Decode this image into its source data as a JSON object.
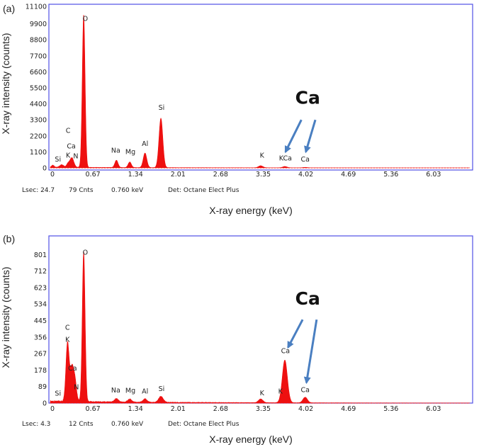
{
  "chart_data": [
    {
      "type": "area",
      "panel_label": "(a)",
      "ylabel": "X-ray intensity (counts)",
      "xlabel": "X-ray energy (keV)",
      "xlim": [
        0,
        6.6
      ],
      "ylim": [
        0,
        11100
      ],
      "x_ticks": [
        "0",
        "0.67",
        "1.34",
        "2.01",
        "2.68",
        "3.35",
        "4.02",
        "4.69",
        "5.36",
        "6.03"
      ],
      "y_ticks": [
        "0",
        "1100",
        "2200",
        "3300",
        "4400",
        "5500",
        "6600",
        "7700",
        "8800",
        "9900",
        "11100"
      ],
      "peaks": [
        {
          "x": 0.04,
          "y": 150,
          "w": 0.02
        },
        {
          "x": 0.18,
          "y": 180,
          "w": 0.03
        },
        {
          "x": 0.28,
          "y": 250,
          "w": 0.025
        },
        {
          "x": 0.34,
          "y": 650,
          "w": 0.03
        },
        {
          "x": 0.525,
          "y": 10500,
          "w": 0.022
        },
        {
          "x": 1.04,
          "y": 500,
          "w": 0.025
        },
        {
          "x": 1.25,
          "y": 380,
          "w": 0.025
        },
        {
          "x": 1.49,
          "y": 1000,
          "w": 0.028
        },
        {
          "x": 1.74,
          "y": 3400,
          "w": 0.03
        },
        {
          "x": 3.31,
          "y": 140,
          "w": 0.035
        },
        {
          "x": 3.69,
          "y": 90,
          "w": 0.035
        },
        {
          "x": 4.01,
          "y": 30,
          "w": 0.035
        }
      ],
      "background": 60,
      "element_labels": [
        {
          "text": "Si",
          "x": 0.12,
          "y": 450
        },
        {
          "text": "K",
          "x": 0.28,
          "y": 700
        },
        {
          "text": "N",
          "x": 0.4,
          "y": 650
        },
        {
          "text": "Ca",
          "x": 0.33,
          "y": 1350
        },
        {
          "text": "C",
          "x": 0.28,
          "y": 2400
        },
        {
          "text": "O",
          "x": 0.55,
          "y": 10100
        },
        {
          "text": "Na",
          "x": 1.03,
          "y": 1050
        },
        {
          "text": "Mg",
          "x": 1.26,
          "y": 950
        },
        {
          "text": "Al",
          "x": 1.49,
          "y": 1500
        },
        {
          "text": "Si",
          "x": 1.75,
          "y": 4000
        },
        {
          "text": "K",
          "x": 3.33,
          "y": 700
        },
        {
          "text": "KCa",
          "x": 3.7,
          "y": 500
        },
        {
          "text": "Ca",
          "x": 4.01,
          "y": 450
        }
      ],
      "callout": {
        "text": "Ca",
        "x": 4.05,
        "y": 4400
      },
      "arrows": [
        {
          "from": [
            3.95,
            3300
          ],
          "to": [
            3.7,
            1100
          ]
        },
        {
          "from": [
            4.17,
            3300
          ],
          "to": [
            4.02,
            1100
          ]
        }
      ],
      "status": {
        "lsec": "Lsec: 24.7",
        "counts": "79 Cnts",
        "energy": "0.760 keV",
        "detector": "Det: Octane Elect Plus"
      }
    },
    {
      "type": "area",
      "panel_label": "(b)",
      "ylabel": "X-ray intensity (counts)",
      "xlabel": "X-ray energy (keV)",
      "xlim": [
        0,
        6.6
      ],
      "ylim": [
        0,
        890
      ],
      "x_ticks": [
        "0",
        "0.67",
        "1.34",
        "2.01",
        "2.68",
        "3.35",
        "4.02",
        "4.69",
        "5.36",
        "6.03"
      ],
      "y_ticks": [
        "0",
        "89",
        "178",
        "267",
        "356",
        "445",
        "534",
        "623",
        "712",
        "801"
      ],
      "peaks": [
        {
          "x": 0.27,
          "y": 310,
          "w": 0.025
        },
        {
          "x": 0.34,
          "y": 180,
          "w": 0.03
        },
        {
          "x": 0.39,
          "y": 90,
          "w": 0.025
        },
        {
          "x": 0.525,
          "y": 810,
          "w": 0.022
        },
        {
          "x": 1.04,
          "y": 18,
          "w": 0.03
        },
        {
          "x": 1.25,
          "y": 16,
          "w": 0.03
        },
        {
          "x": 1.49,
          "y": 18,
          "w": 0.03
        },
        {
          "x": 1.74,
          "y": 32,
          "w": 0.035
        },
        {
          "x": 3.31,
          "y": 20,
          "w": 0.035
        },
        {
          "x": 3.69,
          "y": 230,
          "w": 0.04
        },
        {
          "x": 4.01,
          "y": 30,
          "w": 0.035
        }
      ],
      "background": 14,
      "element_labels": [
        {
          "text": "Si",
          "x": 0.12,
          "y": 40
        },
        {
          "text": "K",
          "x": 0.27,
          "y": 330
        },
        {
          "text": "C",
          "x": 0.27,
          "y": 395
        },
        {
          "text": "Ca",
          "x": 0.35,
          "y": 175
        },
        {
          "text": "N",
          "x": 0.41,
          "y": 75
        },
        {
          "text": "O",
          "x": 0.55,
          "y": 800
        },
        {
          "text": "Na",
          "x": 1.03,
          "y": 58
        },
        {
          "text": "Mg",
          "x": 1.26,
          "y": 55
        },
        {
          "text": "Al",
          "x": 1.49,
          "y": 52
        },
        {
          "text": "Si",
          "x": 1.75,
          "y": 65
        },
        {
          "text": "K",
          "x": 3.33,
          "y": 42
        },
        {
          "text": "K",
          "x": 3.62,
          "y": 52
        },
        {
          "text": "Ca",
          "x": 3.7,
          "y": 270
        },
        {
          "text": "Ca",
          "x": 4.01,
          "y": 60
        }
      ],
      "callout": {
        "text": "Ca",
        "x": 4.05,
        "y": 530
      },
      "arrows": [
        {
          "from": [
            3.97,
            450
          ],
          "to": [
            3.74,
            300
          ]
        },
        {
          "from": [
            4.19,
            450
          ],
          "to": [
            4.03,
            110
          ]
        }
      ],
      "status": {
        "lsec": "Lsec: 4.3",
        "counts": "12 Cnts",
        "energy": "0.760 keV",
        "detector": "Det: Octane Elect Plus"
      }
    }
  ],
  "colors": {
    "spectrum": "#ee1010",
    "frame": "#5050e6",
    "arrow": "#4a7fc1",
    "text": "#222222"
  }
}
